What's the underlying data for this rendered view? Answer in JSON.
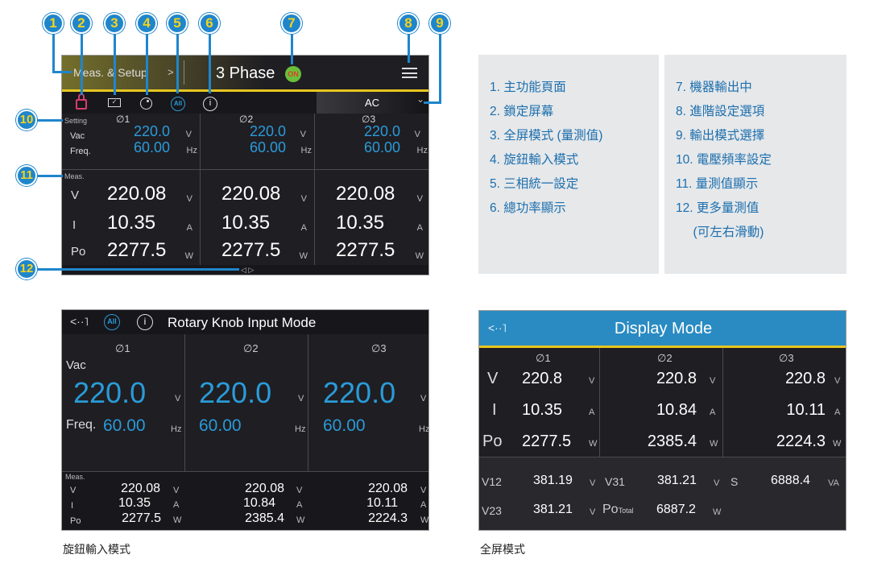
{
  "callouts": [
    "1",
    "2",
    "3",
    "4",
    "5",
    "6",
    "7",
    "8",
    "9",
    "10",
    "11",
    "12"
  ],
  "main_screen": {
    "breadcrumb": "Meas. & Setup",
    "breadcrumb_chevron": ">",
    "title": "3 Phase",
    "output_badge": "ON",
    "menu_icon": "hamburger-menu-icon",
    "toolbar_icons": [
      "lock-icon",
      "display-mode-icon",
      "rotary-knob-icon",
      "all-phase-icon",
      "info-icon"
    ],
    "all_label": "All",
    "info_label": "i",
    "mode_select": {
      "value": "AC",
      "chevron": "⌄"
    },
    "setting_label": "Setting",
    "meas_label": "Meas.",
    "row_labels": {
      "vac": "Vac",
      "freq": "Freq.",
      "v": "V",
      "i": "I",
      "po": "Po"
    },
    "units": {
      "v": "V",
      "hz": "Hz",
      "a": "A",
      "w": "W"
    },
    "phases": [
      {
        "label": "∅1",
        "vac": "220.0",
        "freq": "60.00",
        "v": "220.08",
        "i": "10.35",
        "po": "2277.5"
      },
      {
        "label": "∅2",
        "vac": "220.0",
        "freq": "60.00",
        "v": "220.08",
        "i": "10.35",
        "po": "2277.5"
      },
      {
        "label": "∅3",
        "vac": "220.0",
        "freq": "60.00",
        "v": "220.08",
        "i": "10.35",
        "po": "2277.5"
      }
    ],
    "scroll_arrows": "◁ ▷"
  },
  "legend_left": [
    "1.  主功能頁面",
    "2.  鎖定屏幕",
    "3.  全屏模式 (量測值)",
    "4.  旋鈕輸入模式",
    "5.  三相統一設定",
    "6.  總功率顯示"
  ],
  "legend_right": [
    "7.  機器輸出中",
    "8.  進階設定選項",
    "9.  輸出模式選擇",
    "10. 電壓頻率設定",
    "11. 量測值顯示",
    "12. 更多量測值",
    "     (可左右滑動)"
  ],
  "knob_screen": {
    "back_icon": "<··˥",
    "all_label": "All",
    "info_label": "i",
    "title": "Rotary Knob Input Mode",
    "vac_label": "Vac",
    "freq_label": "Freq.",
    "meas_label": "Meas.",
    "row_labels": {
      "v": "V",
      "i": "I",
      "po": "Po"
    },
    "units": {
      "v": "V",
      "hz": "Hz",
      "a": "A",
      "w": "W"
    },
    "phases": [
      {
        "label": "∅1",
        "vac": "220.0",
        "freq": "60.00",
        "v": "220.08",
        "i": "10.35",
        "po": "2277.5"
      },
      {
        "label": "∅2",
        "vac": "220.0",
        "freq": "60.00",
        "v": "220.08",
        "i": "10.84",
        "po": "2385.4"
      },
      {
        "label": "∅3",
        "vac": "220.0",
        "freq": "60.00",
        "v": "220.08",
        "i": "10.11",
        "po": "2224.3"
      }
    ],
    "caption": "旋鈕輸入模式"
  },
  "display_screen": {
    "back_icon": "<··˥",
    "title": "Display Mode",
    "row_labels": {
      "v": "V",
      "i": "I",
      "po": "Po"
    },
    "units": {
      "v": "V",
      "a": "A",
      "w": "W",
      "va": "VA"
    },
    "phases": [
      {
        "label": "∅1",
        "v": "220.8",
        "i": "10.35",
        "po": "2277.5"
      },
      {
        "label": "∅2",
        "v": "220.8",
        "i": "10.84",
        "po": "2385.4"
      },
      {
        "label": "∅3",
        "v": "220.8",
        "i": "10.11",
        "po": "2224.3"
      }
    ],
    "totals": {
      "v12_label": "V12",
      "v12": "381.19",
      "v31_label": "V31",
      "v31": "381.21",
      "s_label": "S",
      "s": "6888.4",
      "v23_label": "V23",
      "v23": "381.21",
      "po_label": "Po",
      "po_sub": "Total",
      "po": "6887.2"
    },
    "caption": "全屏模式"
  },
  "colors": {
    "accent_blue": "#2a9bd8",
    "header_blue": "#2a8bc2",
    "accent_yellow": "#e7c620",
    "callout_blue": "#1f86cc",
    "on_green": "#6abf3a"
  }
}
